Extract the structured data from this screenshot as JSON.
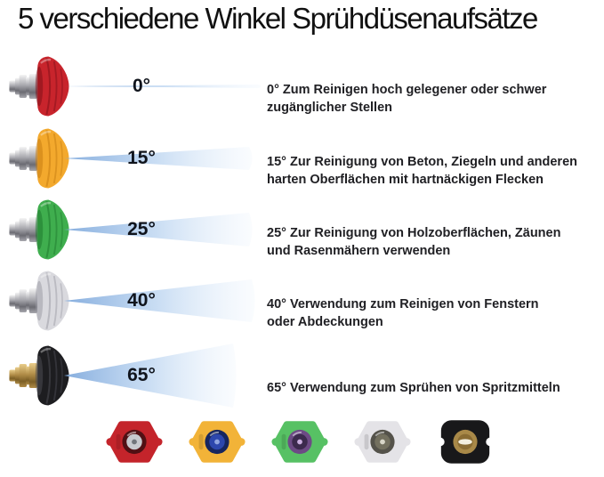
{
  "title": "5 verschiedene Winkel Sprühdüsenaufsätze",
  "rows": [
    {
      "angle_label": "0°",
      "angle_value": 0,
      "cap_color": "#c8242c",
      "cap_dark": "#82101a",
      "metal": "silver",
      "fan": {
        "length": 220,
        "half_height": 2
      },
      "description_lines": [
        "0° Zum Reinigen hoch gelegener oder schwer",
        "zugänglicher Stellen"
      ]
    },
    {
      "angle_label": "15°",
      "angle_value": 15,
      "cap_color": "#f3a92d",
      "cap_dark": "#c67d12",
      "metal": "silver",
      "fan": {
        "length": 210,
        "half_height": 13
      },
      "description_lines": [
        "15° Zur Reinigung von Beton, Ziegeln und anderen",
        "harten Oberflächen mit hartnäckigen Flecken"
      ]
    },
    {
      "angle_label": "25°",
      "angle_value": 25,
      "cap_color": "#3fae4e",
      "cap_dark": "#1f7a2e",
      "metal": "silver",
      "fan": {
        "length": 210,
        "half_height": 19
      },
      "description_lines": [
        "25° Zur Reinigung von Holzoberflächen, Zäunen",
        "und Rasenmähern verwenden"
      ]
    },
    {
      "angle_label": "40°",
      "angle_value": 40,
      "cap_color": "#d9d9de",
      "cap_dark": "#9d9da6",
      "metal": "silver",
      "fan": {
        "length": 213,
        "half_height": 24
      },
      "description_lines": [
        "40° Verwendung zum Reinigen von Fenstern",
        "oder Abdeckungen"
      ]
    },
    {
      "angle_label": "65°",
      "angle_value": 65,
      "cap_color": "#1d1d20",
      "cap_dark": "#4a4a52",
      "metal": "brass",
      "fan": {
        "length": 192,
        "half_height": 36
      },
      "description_lines": [
        "65° Verwendung zum Sprühen von Spritzmitteln"
      ]
    }
  ],
  "metals": {
    "silver": {
      "light": "#f5f5f5",
      "mid": "#a8a8ae",
      "dark": "#6b6b72"
    },
    "brass": {
      "light": "#e9cd8a",
      "mid": "#b08c47",
      "dark": "#7c5f26"
    }
  },
  "spray_colors": {
    "start": "#7fa9dc",
    "mid": "#b9d3f0",
    "end": "#eef5fd"
  },
  "tips": [
    {
      "name": "red",
      "body": "#c4242b",
      "ring": "#511014",
      "center": "#c7cacf",
      "dot": "#71767c",
      "shape": "hex"
    },
    {
      "name": "yellow",
      "body": "#f2b338",
      "ring": "#17265e",
      "center": "#2d47ad",
      "dot": "#8fa4e0",
      "shape": "hex"
    },
    {
      "name": "green",
      "body": "#57c164",
      "ring": "#6d4b85",
      "center": "#3c2a4d",
      "dot": "#c9aede",
      "shape": "hex"
    },
    {
      "name": "white",
      "body": "#e4e3e7",
      "ring": "#54524a",
      "center": "#73705f",
      "dot": "#d8d6c8",
      "shape": "hex"
    },
    {
      "name": "black",
      "body": "#18181a",
      "ring": "#a98948",
      "center": "#8a6c33",
      "dot": "#f3eede",
      "shape": "notch-rect"
    }
  ]
}
